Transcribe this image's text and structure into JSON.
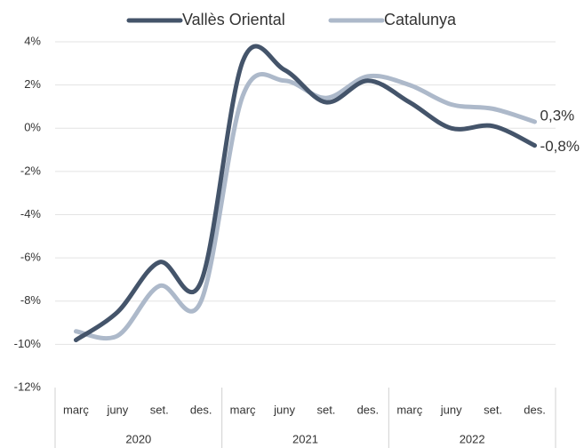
{
  "chart_data": {
    "type": "line",
    "categories": [
      "març",
      "juny",
      "set.",
      "des.",
      "març",
      "juny",
      "set.",
      "des.",
      "març",
      "juny",
      "set.",
      "des."
    ],
    "groups": [
      "2020",
      "2021",
      "2022"
    ],
    "series": [
      {
        "name": "Vallès Oriental",
        "color": "#44546a",
        "values": [
          -9.8,
          -8.5,
          -6.2,
          -7.1,
          3.1,
          2.7,
          1.2,
          2.2,
          1.2,
          0.0,
          0.1,
          -0.8
        ],
        "value_labels": [
          null,
          null,
          null,
          null,
          null,
          null,
          null,
          null,
          null,
          null,
          null,
          "-0,8%"
        ]
      },
      {
        "name": "Catalunya",
        "color": "#adb9ca",
        "values": [
          -9.4,
          -9.6,
          -7.3,
          -8.0,
          1.5,
          2.2,
          1.4,
          2.4,
          2.0,
          1.1,
          0.9,
          0.3
        ],
        "value_labels": [
          null,
          null,
          null,
          null,
          null,
          null,
          null,
          null,
          null,
          null,
          null,
          "0,3%"
        ]
      }
    ],
    "ylim": [
      -12,
      4
    ],
    "yticks": [
      {
        "value": -12,
        "label": "-12%"
      },
      {
        "value": -10,
        "label": "-10%"
      },
      {
        "value": -8,
        "label": "-8%"
      },
      {
        "value": -6,
        "label": "-6%"
      },
      {
        "value": -4,
        "label": "-4%"
      },
      {
        "value": -2,
        "label": "-2%"
      },
      {
        "value": 0,
        "label": "0%"
      },
      {
        "value": 2,
        "label": "2%"
      },
      {
        "value": 4,
        "label": "4%"
      }
    ],
    "grid": true,
    "legend": "top"
  }
}
